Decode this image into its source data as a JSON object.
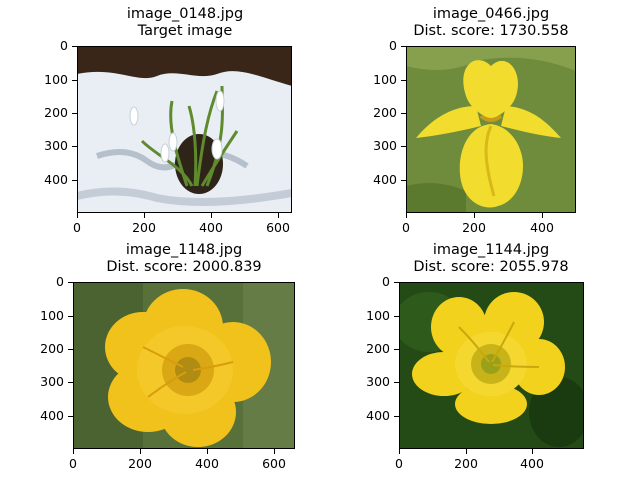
{
  "panels": [
    {
      "file": "image_0148.jpg",
      "subtitle": "Target image",
      "x_ticks": [
        "0",
        "200",
        "400",
        "600"
      ],
      "y_ticks": [
        "0",
        "100",
        "200",
        "300",
        "400"
      ]
    },
    {
      "file": "image_0466.jpg",
      "subtitle": "Dist. score: 1730.558",
      "x_ticks": [
        "0",
        "200",
        "400"
      ],
      "y_ticks": [
        "0",
        "100",
        "200",
        "300",
        "400"
      ]
    },
    {
      "file": "image_1148.jpg",
      "subtitle": "Dist. score: 2000.839",
      "x_ticks": [
        "0",
        "200",
        "400",
        "600"
      ],
      "y_ticks": [
        "0",
        "100",
        "200",
        "300",
        "400"
      ]
    },
    {
      "file": "image_1144.jpg",
      "subtitle": "Dist. score: 2055.978",
      "x_ticks": [
        "0",
        "200",
        "400"
      ],
      "y_ticks": [
        "0",
        "100",
        "200",
        "300",
        "400"
      ]
    }
  ],
  "images": [
    {
      "name": "snowdrops-in-snow-image",
      "colors": {
        "ground": "#e9eef4",
        "shadow": "#b6bfcc",
        "top": "#3a2618",
        "stem": "#5f8a2e",
        "flower": "#ffffff"
      }
    },
    {
      "name": "yellow-iris-image",
      "colors": {
        "ground": "#6e8c3c",
        "petal": "#f2dc2e",
        "petal_dark": "#d8b91c",
        "center": "#c79a18"
      }
    },
    {
      "name": "buttercup-blurred-image",
      "colors": {
        "ground": "#58713a",
        "petal": "#f2c21c",
        "petal_dark": "#d99c0c",
        "center": "#b08c12"
      }
    },
    {
      "name": "buttercup-dark-image",
      "colors": {
        "ground": "#244a16",
        "petal": "#f2d21c",
        "petal_dark": "#c8a80c",
        "center": "#9aa01a"
      }
    }
  ]
}
